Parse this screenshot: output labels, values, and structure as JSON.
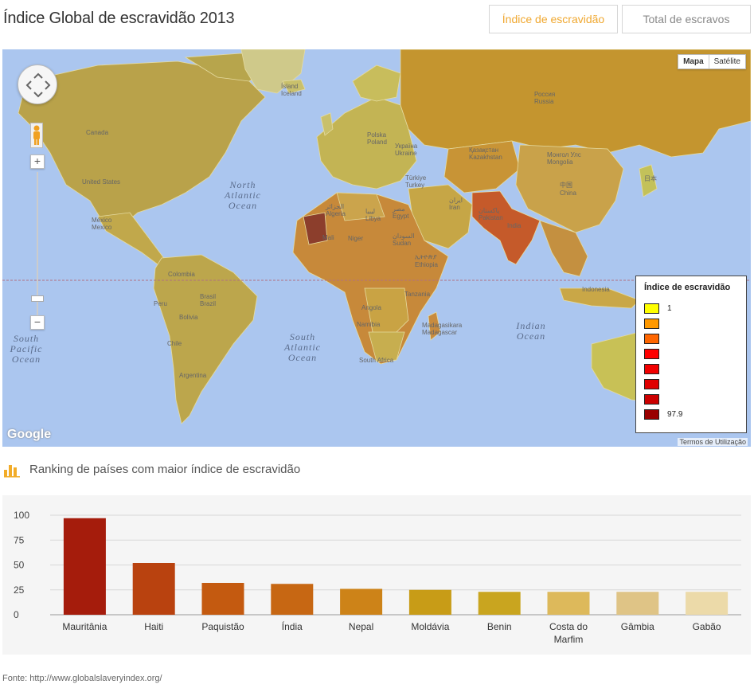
{
  "title": "Índice Global de escravidão 2013",
  "tabs": [
    {
      "label": "Índice de escravidão",
      "active": true
    },
    {
      "label": "Total de escravos",
      "active": false
    }
  ],
  "map": {
    "type_buttons": [
      "Mapa",
      "Satélite"
    ],
    "oceans": {
      "north_atlantic": "North Atlantic Ocean",
      "south_atlantic": "South Atlantic Ocean",
      "south_pacific": "South Pacific Ocean",
      "indian": "Indian Ocean"
    },
    "countries": {
      "canada": "Canada",
      "us": "United States",
      "mexico": "México Mexico",
      "colombia": "Colombia",
      "peru": "Peru",
      "brasil": "Brasil Brazil",
      "bolivia": "Bolivia",
      "chile": "Chile",
      "argentina": "Argentina",
      "iceland": "Ísland Iceland",
      "poland": "Polska Poland",
      "ukraine": "Україна Ukraine",
      "turkey": "Türkiye Turkey",
      "algeria": "الجزائر Algeria",
      "libya": "ليبيا Libya",
      "egypt": "مصر Egypt",
      "mali": "Mali",
      "niger": "Niger",
      "sudan": "السودان Sudan",
      "ethiopia": "ኢትዮጵያ Ethiopia",
      "tanzania": "Tanzania",
      "angola": "Angola",
      "namibia": "Namibia",
      "south_africa": "South Africa",
      "madagascar": "Madagasikara Madagascar",
      "russia": "Россия Russia",
      "kazakhstan": "Қазақстан Kazakhstan",
      "mongolia": "Монгол Улс Mongolia",
      "china": "中国 China",
      "iran": "ایران Iran",
      "pakistan": "پاکستان Pakistan",
      "india": "India",
      "indonesia": "Indonesia",
      "japan": "日本"
    },
    "branding": "Google",
    "terms": "Termos de Utilização",
    "legend": {
      "title": "Índice de escravidão",
      "min_label": "1",
      "max_label": "97.9",
      "colors": [
        "#ffff00",
        "#ff9900",
        "#ff6600",
        "#ff0000",
        "#f20000",
        "#e00000",
        "#cc0000",
        "#990000"
      ]
    }
  },
  "ranking_title": "Ranking de países com maior índice de escravidão",
  "chart_data": {
    "type": "bar",
    "categories": [
      "Mauritânia",
      "Haiti",
      "Paquistão",
      "Índia",
      "Nepal",
      "Moldávia",
      "Benin",
      "Costa do Marfim",
      "Gâmbia",
      "Gabão"
    ],
    "values": [
      97,
      52,
      32,
      31,
      26,
      25,
      23,
      23,
      23,
      23
    ],
    "colors": [
      "#a51c0c",
      "#b9420f",
      "#c45a10",
      "#c76713",
      "#cd8318",
      "#c89c17",
      "#c9a51f",
      "#ddb95b",
      "#dfc486",
      "#ecdaa9"
    ],
    "ylim": [
      0,
      100
    ],
    "yticks": [
      0,
      25,
      50,
      75,
      100
    ],
    "grid": true
  },
  "source": {
    "label": "Fonte:",
    "url": "http://www.globalslaveryindex.org/"
  }
}
